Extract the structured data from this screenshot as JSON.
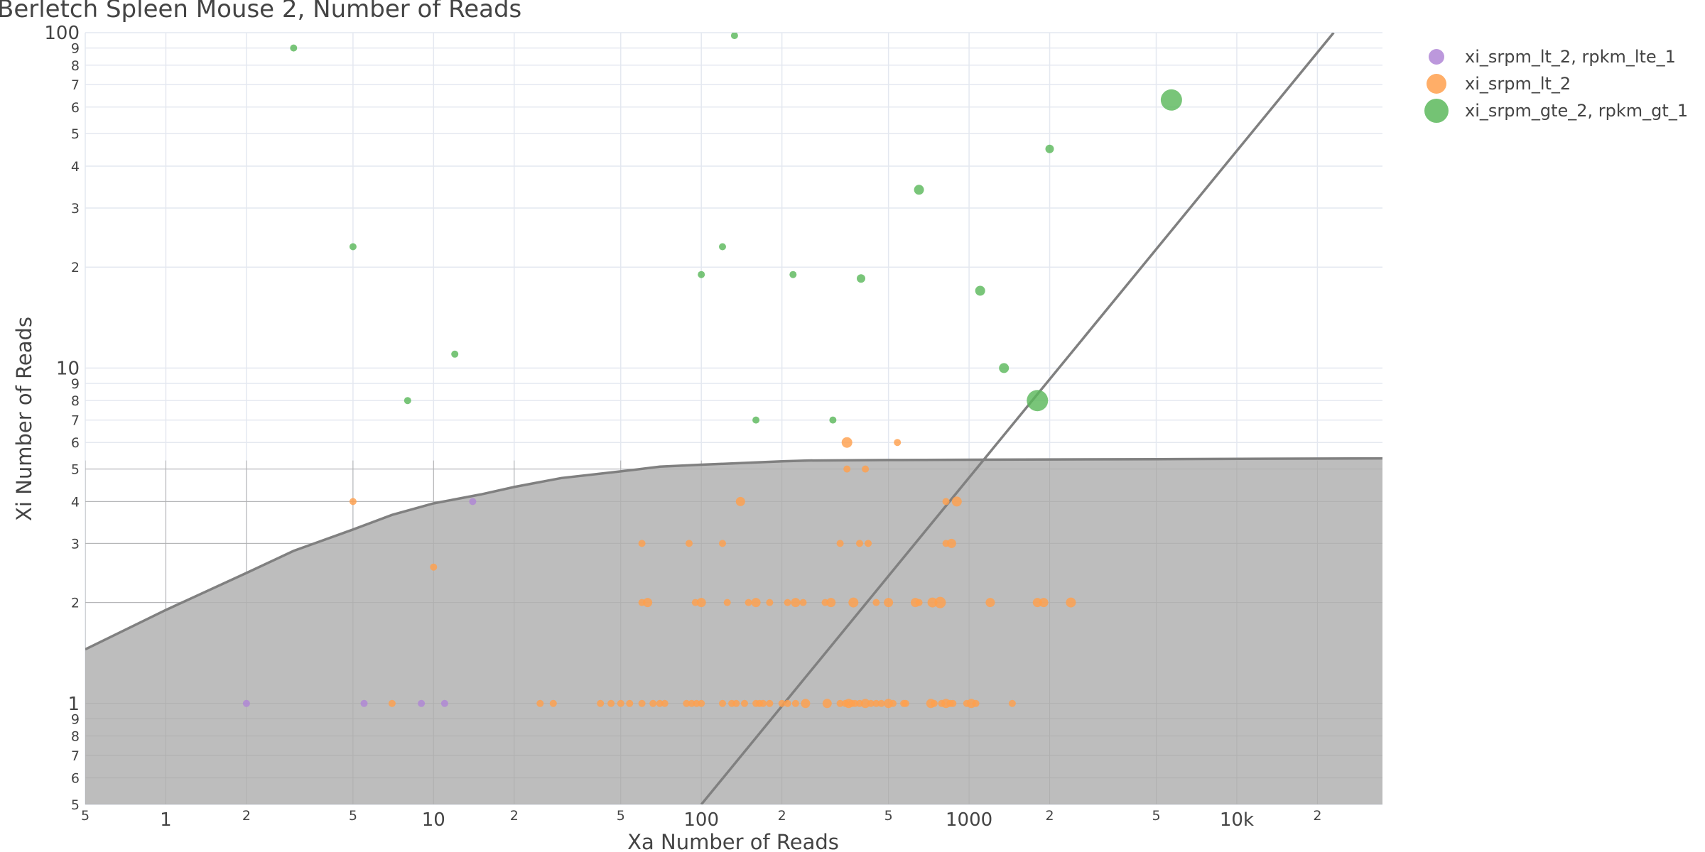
{
  "chart_data": {
    "type": "scatter",
    "title": "Berletch Spleen Mouse 2, Number of Reads",
    "xlabel": "Xa Number of Reads",
    "ylabel": "Xi Number of Reads",
    "x_scale": "log",
    "y_scale": "log",
    "xlim": [
      0.5,
      35000
    ],
    "ylim": [
      0.5,
      100
    ],
    "grid": true,
    "legend_position": "top-right",
    "x_major_ticks": [
      {
        "v": 1,
        "label": "1"
      },
      {
        "v": 10,
        "label": "10"
      },
      {
        "v": 100,
        "label": "100"
      },
      {
        "v": 1000,
        "label": "1000"
      },
      {
        "v": 10000,
        "label": "10k"
      }
    ],
    "x_minor_ticks": [
      {
        "v": 0.5,
        "label": "5"
      },
      {
        "v": 2,
        "label": "2"
      },
      {
        "v": 5,
        "label": "5"
      },
      {
        "v": 20,
        "label": "2"
      },
      {
        "v": 50,
        "label": "5"
      },
      {
        "v": 200,
        "label": "2"
      },
      {
        "v": 500,
        "label": "5"
      },
      {
        "v": 2000,
        "label": "2"
      },
      {
        "v": 5000,
        "label": "5"
      },
      {
        "v": 20000,
        "label": "2"
      }
    ],
    "y_major_ticks": [
      {
        "v": 1,
        "label": "1"
      },
      {
        "v": 10,
        "label": "10"
      },
      {
        "v": 100,
        "label": "100"
      }
    ],
    "y_minor_ticks": [
      {
        "v": 0.5,
        "label": "5"
      },
      {
        "v": 0.6,
        "label": "6"
      },
      {
        "v": 0.7,
        "label": "7"
      },
      {
        "v": 0.8,
        "label": "8"
      },
      {
        "v": 0.9,
        "label": "9"
      },
      {
        "v": 2,
        "label": "2"
      },
      {
        "v": 3,
        "label": "3"
      },
      {
        "v": 4,
        "label": "4"
      },
      {
        "v": 5,
        "label": "5"
      },
      {
        "v": 6,
        "label": "6"
      },
      {
        "v": 7,
        "label": "7"
      },
      {
        "v": 8,
        "label": "8"
      },
      {
        "v": 9,
        "label": "9"
      },
      {
        "v": 20,
        "label": "2"
      },
      {
        "v": 30,
        "label": "3"
      },
      {
        "v": 40,
        "label": "4"
      },
      {
        "v": 50,
        "label": "5"
      },
      {
        "v": 60,
        "label": "6"
      },
      {
        "v": 70,
        "label": "7"
      },
      {
        "v": 80,
        "label": "8"
      },
      {
        "v": 90,
        "label": "9"
      }
    ],
    "threshold_curve": {
      "color": "#808080",
      "fill": "#bdbdbd",
      "points": [
        [
          0.5,
          1.45
        ],
        [
          1,
          1.9
        ],
        [
          2,
          2.45
        ],
        [
          3,
          2.85
        ],
        [
          5,
          3.3
        ],
        [
          7,
          3.65
        ],
        [
          10,
          3.95
        ],
        [
          15,
          4.2
        ],
        [
          20,
          4.42
        ],
        [
          30,
          4.7
        ],
        [
          50,
          4.92
        ],
        [
          70,
          5.08
        ],
        [
          100,
          5.15
        ],
        [
          150,
          5.22
        ],
        [
          200,
          5.27
        ],
        [
          250,
          5.3
        ],
        [
          500,
          5.32
        ],
        [
          1000,
          5.33
        ],
        [
          5000,
          5.35
        ],
        [
          35000,
          5.38
        ]
      ]
    },
    "diagonal_line": {
      "color": "#808080",
      "points": [
        [
          100,
          0.5
        ],
        [
          23000,
          100
        ]
      ]
    },
    "series": [
      {
        "name": "xi_srpm_lt_2, rpkm_lte_1",
        "color": "#b086d6",
        "points": [
          [
            2,
            1,
            1
          ],
          [
            5.5,
            1,
            1
          ],
          [
            9,
            1,
            1
          ],
          [
            11,
            1,
            1
          ],
          [
            14,
            4,
            1
          ]
        ]
      },
      {
        "name": "xi_srpm_lt_2",
        "color": "#ffa04d",
        "points": [
          [
            5,
            4,
            1
          ],
          [
            350,
            6,
            1.5
          ],
          [
            540,
            6,
            1
          ],
          [
            7,
            1,
            1
          ],
          [
            10,
            2.55,
            1
          ],
          [
            140,
            4,
            1.3
          ],
          [
            350,
            5,
            1
          ],
          [
            410,
            5,
            1
          ],
          [
            820,
            4,
            1
          ],
          [
            900,
            4,
            1.4
          ],
          [
            60,
            3,
            1
          ],
          [
            90,
            3,
            1
          ],
          [
            120,
            3,
            1
          ],
          [
            330,
            3,
            1
          ],
          [
            390,
            3,
            1
          ],
          [
            420,
            3,
            1
          ],
          [
            820,
            3,
            1
          ],
          [
            860,
            3,
            1.3
          ],
          [
            60,
            2,
            1
          ],
          [
            63,
            2,
            1.3
          ],
          [
            95,
            2,
            1
          ],
          [
            100,
            2,
            1.3
          ],
          [
            125,
            2,
            1
          ],
          [
            150,
            2,
            1
          ],
          [
            160,
            2,
            1.3
          ],
          [
            180,
            2,
            1
          ],
          [
            210,
            2,
            1
          ],
          [
            225,
            2,
            1.3
          ],
          [
            240,
            2,
            1
          ],
          [
            290,
            2,
            1
          ],
          [
            305,
            2,
            1.3
          ],
          [
            370,
            2,
            1.4
          ],
          [
            450,
            2,
            1
          ],
          [
            500,
            2,
            1.3
          ],
          [
            630,
            2,
            1.3
          ],
          [
            650,
            2,
            1
          ],
          [
            730,
            2,
            1.4
          ],
          [
            780,
            2,
            1.6
          ],
          [
            1200,
            2,
            1.3
          ],
          [
            1800,
            2,
            1.3
          ],
          [
            1900,
            2,
            1.3
          ],
          [
            2400,
            2,
            1.4
          ],
          [
            25,
            1,
            1
          ],
          [
            28,
            1,
            1
          ],
          [
            42,
            1,
            1
          ],
          [
            46,
            1,
            1
          ],
          [
            50,
            1,
            1
          ],
          [
            54,
            1,
            1
          ],
          [
            60,
            1,
            1
          ],
          [
            66,
            1,
            1
          ],
          [
            70,
            1,
            1
          ],
          [
            73,
            1,
            1
          ],
          [
            88,
            1,
            1
          ],
          [
            92,
            1,
            1
          ],
          [
            96,
            1,
            1
          ],
          [
            100,
            1,
            1
          ],
          [
            120,
            1,
            1
          ],
          [
            130,
            1,
            1
          ],
          [
            135,
            1,
            1
          ],
          [
            145,
            1,
            1
          ],
          [
            160,
            1,
            1
          ],
          [
            165,
            1,
            1
          ],
          [
            170,
            1,
            1
          ],
          [
            180,
            1,
            1
          ],
          [
            200,
            1,
            1
          ],
          [
            210,
            1,
            1
          ],
          [
            225,
            1,
            1
          ],
          [
            245,
            1,
            1.3
          ],
          [
            295,
            1,
            1.3
          ],
          [
            330,
            1,
            1
          ],
          [
            345,
            1,
            1
          ],
          [
            355,
            1,
            1.3
          ],
          [
            365,
            1,
            1
          ],
          [
            375,
            1,
            1
          ],
          [
            390,
            1,
            1
          ],
          [
            410,
            1,
            1.3
          ],
          [
            430,
            1,
            1
          ],
          [
            450,
            1,
            1
          ],
          [
            470,
            1,
            1
          ],
          [
            500,
            1,
            1.3
          ],
          [
            520,
            1,
            1
          ],
          [
            570,
            1,
            1
          ],
          [
            580,
            1,
            1
          ],
          [
            720,
            1,
            1.3
          ],
          [
            740,
            1,
            1
          ],
          [
            790,
            1,
            1
          ],
          [
            820,
            1,
            1.3
          ],
          [
            850,
            1,
            1
          ],
          [
            870,
            1,
            1
          ],
          [
            980,
            1,
            1
          ],
          [
            1020,
            1,
            1.3
          ],
          [
            1060,
            1,
            1
          ],
          [
            1450,
            1,
            1
          ]
        ]
      },
      {
        "name": "xi_srpm_gte_2, rpkm_gt_1",
        "color": "#5cb85c",
        "points": [
          [
            3,
            90,
            1
          ],
          [
            133,
            98,
            1
          ],
          [
            5700,
            63,
            3
          ],
          [
            2000,
            45,
            1.2
          ],
          [
            650,
            34,
            1.4
          ],
          [
            5,
            23,
            1
          ],
          [
            120,
            23,
            1
          ],
          [
            100,
            19,
            1
          ],
          [
            220,
            19,
            1
          ],
          [
            395,
            18.5,
            1.2
          ],
          [
            1100,
            17,
            1.4
          ],
          [
            12,
            11,
            1
          ],
          [
            8,
            8,
            1
          ],
          [
            1350,
            10,
            1.4
          ],
          [
            1800,
            8,
            3
          ],
          [
            160,
            7,
            1
          ],
          [
            310,
            7,
            1
          ]
        ]
      }
    ]
  }
}
